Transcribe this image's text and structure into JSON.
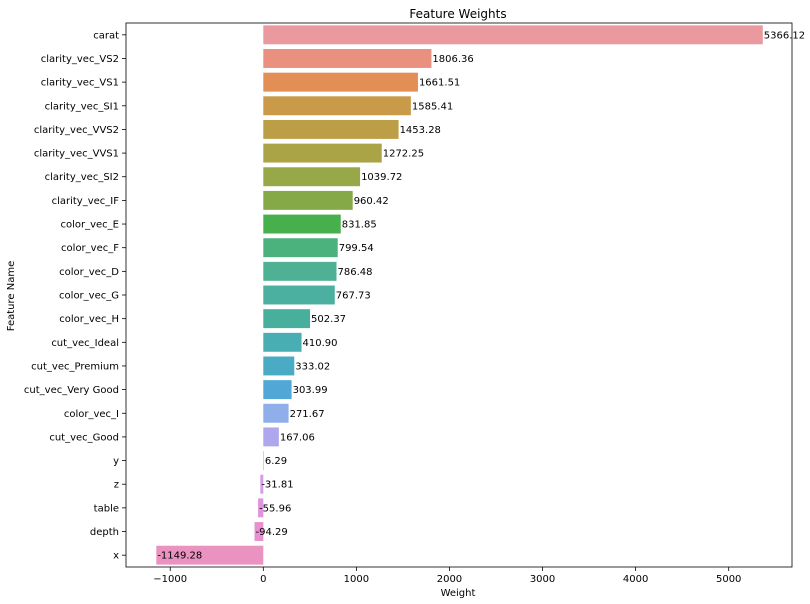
{
  "chart_data": {
    "type": "bar",
    "orientation": "horizontal",
    "title": "Feature Weights",
    "xlabel": "Weight",
    "ylabel": "Feature Name",
    "xlim": [
      -1475,
      5680
    ],
    "xticks": [
      -1000,
      0,
      1000,
      2000,
      3000,
      4000,
      5000
    ],
    "grid": false,
    "categories": [
      "carat",
      "clarity_vec_VS2",
      "clarity_vec_VS1",
      "clarity_vec_SI1",
      "clarity_vec_VVS2",
      "clarity_vec_VVS1",
      "clarity_vec_SI2",
      "clarity_vec_IF",
      "color_vec_E",
      "color_vec_F",
      "color_vec_D",
      "color_vec_G",
      "color_vec_H",
      "cut_vec_Ideal",
      "cut_vec_Premium",
      "cut_vec_Very Good",
      "color_vec_I",
      "cut_vec_Good",
      "y",
      "z",
      "table",
      "depth",
      "x"
    ],
    "values": [
      5366.12,
      1806.36,
      1661.51,
      1585.41,
      1453.28,
      1272.25,
      1039.72,
      960.42,
      831.85,
      799.54,
      786.48,
      767.73,
      502.37,
      410.9,
      333.02,
      303.99,
      271.67,
      167.06,
      6.29,
      -31.81,
      -55.96,
      -94.29,
      -1149.28
    ],
    "value_labels": [
      "5366.12",
      "1806.36",
      "1661.51",
      "1585.41",
      "1453.28",
      "1272.25",
      "1039.72",
      "960.42",
      "831.85",
      "799.54",
      "786.48",
      "767.73",
      "502.37",
      "410.90",
      "333.02",
      "303.99",
      "271.67",
      "167.06",
      "6.29",
      "-31.81",
      "-55.96",
      "-94.29",
      "-1149.28"
    ],
    "colors": [
      "#ea9a9e",
      "#e9907f",
      "#e28e55",
      "#c99a47",
      "#bb9e45",
      "#aba446",
      "#97a848",
      "#86a947",
      "#47af4c",
      "#4cb27d",
      "#4eb194",
      "#4bb09f",
      "#47af9b",
      "#48aeb3",
      "#4aabc5",
      "#51a8d6",
      "#8faeea",
      "#afa6ed",
      "#c2a0ed",
      "#d59be9",
      "#e193e0",
      "#e88fcf",
      "#ea93c1"
    ]
  }
}
